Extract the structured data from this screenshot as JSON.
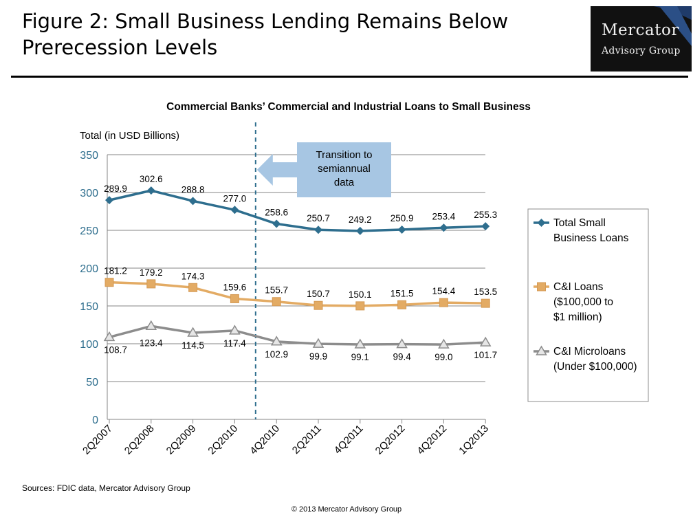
{
  "header": {
    "title": "Figure 2: Small Business Lending Remains Below Prerecession Levels",
    "logo_line1": "Mercator",
    "logo_line2": "Advisory Group"
  },
  "chart_data": {
    "type": "line",
    "title": "Commercial Banks’ Commercial and Industrial Loans to Small Business",
    "ylabel": "Total (in USD Billions)",
    "xlabel": "",
    "ylim": [
      0,
      350
    ],
    "yticks": [
      0,
      50,
      100,
      150,
      200,
      250,
      300,
      350
    ],
    "grid": "horizontal",
    "legend_position": "right",
    "categories": [
      "2Q2007",
      "2Q2008",
      "2Q2009",
      "2Q2010",
      "4Q2010",
      "2Q2011",
      "4Q2011",
      "2Q2012",
      "4Q2012",
      "1Q2013"
    ],
    "series": [
      {
        "name": "Total Small Business Loans",
        "legend_lines": [
          "Total Small",
          "Business Loans"
        ],
        "marker": "diamond",
        "color": "#2e6e8e",
        "values": [
          289.9,
          302.6,
          288.8,
          277.0,
          258.6,
          250.7,
          249.2,
          250.9,
          253.4,
          255.3
        ],
        "labels": [
          "289.9",
          "302.6",
          "288.8",
          "277.0",
          "258.6",
          "250.7",
          "249.2",
          "250.9",
          "253.4",
          "255.3"
        ]
      },
      {
        "name": "C&I Loans ($100,000 to $1 million)",
        "legend_lines": [
          "C&I  Loans",
          "($100,000 to",
          "$1 million)"
        ],
        "marker": "square",
        "color": "#e3ab64",
        "values": [
          181.2,
          179.2,
          174.3,
          159.6,
          155.7,
          150.7,
          150.1,
          151.5,
          154.4,
          153.5
        ],
        "labels": [
          "181.2",
          "179.2",
          "174.3",
          "159.6",
          "155.7",
          "150.7",
          "150.1",
          "151.5",
          "154.4",
          "153.5"
        ]
      },
      {
        "name": "C&I Microloans (Under $100,000)",
        "legend_lines": [
          "C&I Microloans",
          "(Under $100,000)"
        ],
        "marker": "triangle",
        "color": "#8c8c8c",
        "values": [
          108.7,
          123.4,
          114.5,
          117.4,
          102.9,
          99.9,
          99.1,
          99.4,
          99.0,
          101.7
        ],
        "labels": [
          "108.7",
          "123.4",
          "114.5",
          "117.4",
          "102.9",
          "99.9",
          "99.1",
          "99.4",
          "99.0",
          "101.7"
        ]
      }
    ],
    "annotation": {
      "text_lines": [
        "Transition to",
        "semiannual",
        "data"
      ],
      "between_categories": [
        "2Q2010",
        "4Q2010"
      ]
    }
  },
  "footer": {
    "sources": "Sources: FDIC data, Mercator Advisory Group",
    "copyright": "© 2013  Mercator Advisory Group"
  },
  "colors": {
    "axis_text": "#2b6c8c",
    "grid": "#868686",
    "annotation_fill": "#a7c6e3",
    "divider": "#2e6e8e"
  }
}
